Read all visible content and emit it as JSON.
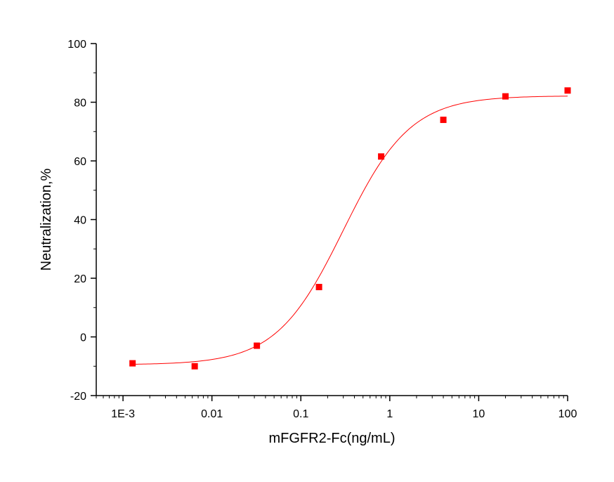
{
  "chart_data": {
    "type": "scatter",
    "title": "",
    "xlabel": "mFGFR2-Fc(ng/mL)",
    "ylabel": "Neutralization,%",
    "xscale": "log",
    "xlim": [
      0.0005,
      100
    ],
    "ylim": [
      -20,
      100
    ],
    "x_ticks": [
      0.001,
      0.01,
      0.1,
      1,
      10,
      100
    ],
    "x_tick_labels": [
      "1E-3",
      "0.01",
      "0.1",
      "1",
      "10",
      "100"
    ],
    "y_ticks": [
      -20,
      0,
      20,
      40,
      60,
      80,
      100
    ],
    "y_tick_labels": [
      "-20",
      "0",
      "20",
      "40",
      "60",
      "80",
      "100"
    ],
    "grid": false,
    "legend": "none",
    "series": [
      {
        "type": "scatter",
        "marker": "square",
        "color": "#ff0000",
        "x": [
          0.00128,
          0.0064,
          0.032,
          0.16,
          0.8,
          4,
          20,
          100
        ],
        "y": [
          -9,
          -10,
          -3,
          17,
          61.5,
          74,
          82,
          84
        ]
      },
      {
        "type": "line",
        "fit": "four-parameter logistic",
        "color": "#ff0000",
        "bottom": -9.5,
        "top": 82.2,
        "ec50": 0.3,
        "hill_slope": 1.15
      }
    ]
  }
}
